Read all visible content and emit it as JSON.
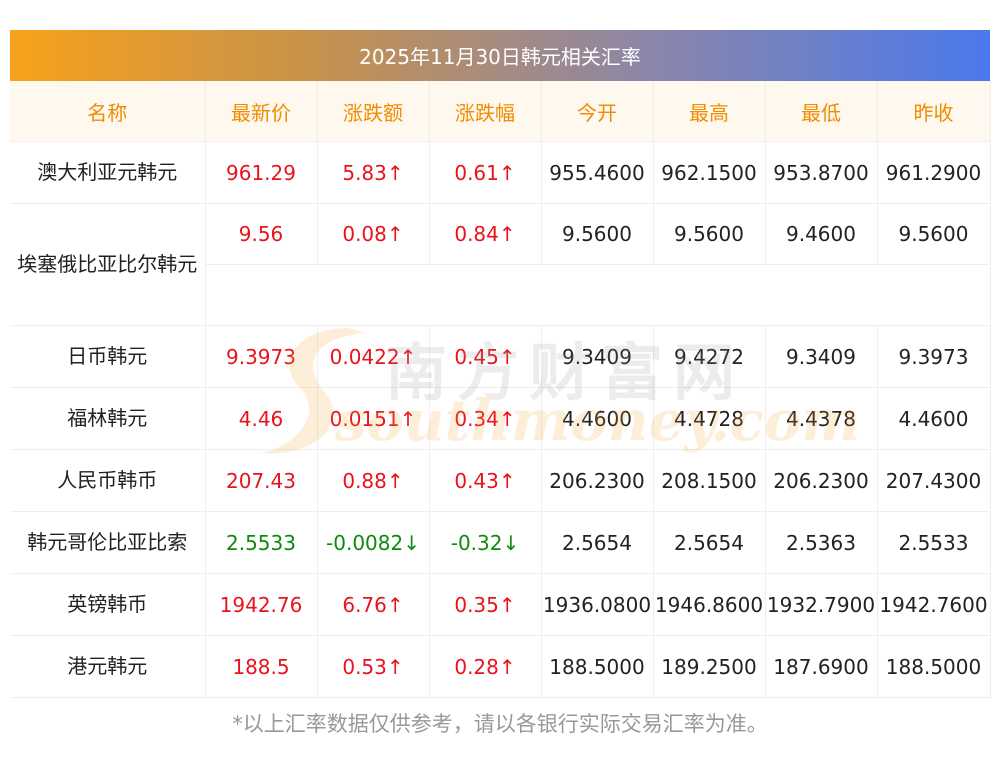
{
  "title": "2025年11月30日韩元相关汇率",
  "columns": [
    "名称",
    "最新价",
    "涨跌额",
    "涨跌幅",
    "今开",
    "最高",
    "最低",
    "昨收"
  ],
  "rows": [
    {
      "name": "澳大利亚元韩元",
      "latest": "961.29",
      "change": "5.83↑",
      "pct": "0.61↑",
      "open": "955.4600",
      "high": "962.1500",
      "low": "953.8700",
      "prev": "961.2900",
      "dir": "up"
    },
    {
      "name": "埃塞俄比亚比尔韩元",
      "latest": "9.56",
      "change": "0.08↑",
      "pct": "0.84↑",
      "open": "9.5600",
      "high": "9.5600",
      "low": "9.4600",
      "prev": "9.5600",
      "dir": "up"
    },
    {
      "name": "日币韩元",
      "latest": "9.3973",
      "change": "0.0422↑",
      "pct": "0.45↑",
      "open": "9.3409",
      "high": "9.4272",
      "low": "9.3409",
      "prev": "9.3973",
      "dir": "up"
    },
    {
      "name": "福林韩元",
      "latest": "4.46",
      "change": "0.0151↑",
      "pct": "0.34↑",
      "open": "4.4600",
      "high": "4.4728",
      "low": "4.4378",
      "prev": "4.4600",
      "dir": "up"
    },
    {
      "name": "人民币韩币",
      "latest": "207.43",
      "change": "0.88↑",
      "pct": "0.43↑",
      "open": "206.2300",
      "high": "208.1500",
      "low": "206.2300",
      "prev": "207.4300",
      "dir": "up"
    },
    {
      "name": "韩元哥伦比亚比索",
      "latest": "2.5533",
      "change": "-0.0082↓",
      "pct": "-0.32↓",
      "open": "2.5654",
      "high": "2.5654",
      "low": "2.5363",
      "prev": "2.5533",
      "dir": "down"
    },
    {
      "name": "英镑韩币",
      "latest": "1942.76",
      "change": "6.76↑",
      "pct": "0.35↑",
      "open": "1936.0800",
      "high": "1946.8600",
      "low": "1932.7900",
      "prev": "1942.7600",
      "dir": "up"
    },
    {
      "name": "港元韩元",
      "latest": "188.5",
      "change": "0.53↑",
      "pct": "0.28↑",
      "open": "188.5000",
      "high": "189.2500",
      "low": "187.6900",
      "prev": "188.5000",
      "dir": "up"
    }
  ],
  "watermark": {
    "cn": "南方财富网",
    "en": "southmoney.com"
  },
  "footer": "*以上汇率数据仅供参考，请以各银行实际交易汇率为准。",
  "colors": {
    "up": "#e8131c",
    "down": "#0f8a0f",
    "header_text": "#f08c00",
    "title_start": "#f7a21a",
    "title_end": "#4b79ec"
  }
}
